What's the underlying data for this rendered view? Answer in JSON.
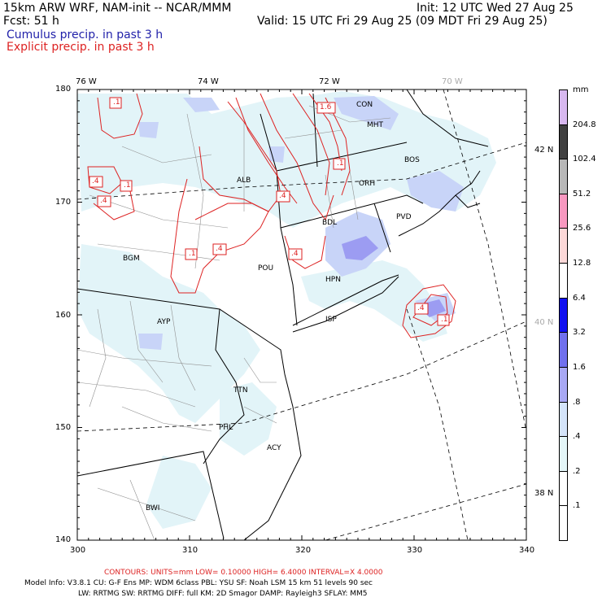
{
  "header": {
    "line1_left": "15km ARW WRF, NAM-init -- NCAR/MMM",
    "line1_right": "Init: 12 UTC Wed 27 Aug 25",
    "line2_left": "Fcst:   51 h",
    "line2_right": "Valid: 15 UTC Fri 29 Aug 25 (09 MDT Fri 29 Aug 25)",
    "legend_cumulus": "Cumulus precip. in past 3 h",
    "legend_explicit": "Explicit precip. in past 3 h",
    "cumulus_color": "#2222aa",
    "explicit_color": "#dd2222"
  },
  "axes": {
    "x_ticks": [
      "300",
      "310",
      "320",
      "330",
      "340"
    ],
    "y_ticks": [
      "140",
      "150",
      "160",
      "170",
      "180"
    ],
    "lon_labels": [
      "76 W",
      "74 W",
      "72 W",
      "70 W"
    ],
    "lat_labels": [
      "42 N",
      "40 N",
      "38 N"
    ]
  },
  "colorbar": {
    "unit": "mm",
    "labels": [
      "204.8",
      "102.4",
      "51.2",
      "25.6",
      "12.8",
      "6.4",
      "3.2",
      "1.6",
      ".8",
      ".4",
      ".2",
      ".1"
    ],
    "colors": [
      "#d8b8f0",
      "#404040",
      "#b8b8b8",
      "#f898c0",
      "#fcd8d8",
      "#ffffff",
      "#1010f0",
      "#7070ee",
      "#a8a8f4",
      "#d4e4fa",
      "#e4f6f8",
      "#ffffff",
      "#ffffff"
    ]
  },
  "stations": [
    "CON",
    "MHT",
    "BOS",
    "ALB",
    "ORH",
    "PVD",
    "BDL",
    "BGM",
    "POU",
    "HPN",
    "AYP",
    "ISP",
    "TTN",
    "PHL",
    "ACY",
    "BWI"
  ],
  "contour_labels": [
    ".1",
    "1.6",
    ".1",
    ".4",
    ".1",
    ".4",
    ".4",
    ".1",
    ".4",
    ".4",
    ".4",
    ".1"
  ],
  "footer": {
    "contours": "CONTOURS:  UNITS=mm  LOW= 0.10000        HIGH=  6.4000        INTERVAL=X  4.0000",
    "model_info_1": "Model Info: V3.8.1    CU: G-F Ens MP: WDM 6class  PBL: YSU       SF: Noah LSM     15 km    51 levels    90 sec",
    "model_info_2": "LW: RRTMG    SW: RRTMG  DIFF: full     KM: 2D Smagor DAMP: Rayleigh3  SFLAY: MM5"
  }
}
